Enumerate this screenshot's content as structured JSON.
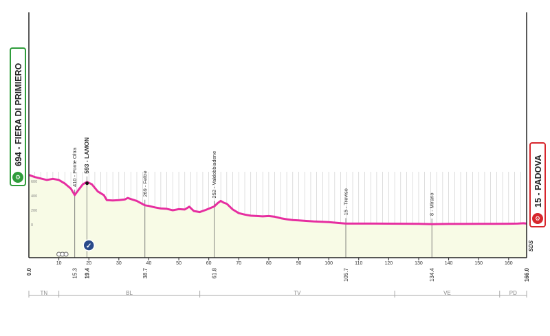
{
  "chart_data": {
    "type": "area",
    "x_range": [
      0,
      166
    ],
    "xticks": [
      10,
      20,
      30,
      40,
      50,
      60,
      70,
      80,
      90,
      100,
      110,
      120,
      130,
      140,
      150,
      160
    ],
    "yticks": [
      0,
      200,
      400,
      600
    ],
    "profile": {
      "x": [
        0,
        2,
        4,
        6,
        8,
        10,
        12,
        14,
        15.3,
        16.5,
        18,
        19.4,
        21,
        23,
        25,
        26,
        28,
        30,
        32,
        33,
        34,
        36,
        38.7,
        40,
        42,
        44,
        46,
        48,
        50,
        52,
        53.5,
        55,
        57,
        59,
        61.8,
        63,
        64,
        65,
        66,
        68,
        70,
        72,
        74,
        76,
        78,
        80,
        82,
        84,
        86,
        88,
        90,
        95,
        100,
        105.7,
        110,
        115,
        120,
        125,
        130,
        134.4,
        140,
        145,
        150,
        155,
        160,
        163,
        165,
        166
      ],
      "y": [
        690,
        660,
        640,
        620,
        635,
        620,
        570,
        500,
        410,
        480,
        560,
        593,
        560,
        460,
        410,
        340,
        335,
        340,
        350,
        370,
        355,
        330,
        269,
        260,
        240,
        225,
        220,
        200,
        215,
        210,
        250,
        190,
        175,
        205,
        252,
        300,
        330,
        305,
        290,
        210,
        160,
        140,
        125,
        120,
        115,
        120,
        110,
        90,
        75,
        65,
        60,
        45,
        35,
        15,
        15,
        15,
        14,
        13,
        12,
        8,
        10,
        10,
        11,
        12,
        13,
        15,
        20,
        15
      ]
    },
    "points": [
      {
        "km": "0.0",
        "elev": "694",
        "name": "FIERA DI PRIMIERO",
        "kind": "start",
        "x": 0,
        "y": 694
      },
      {
        "km": "15.3",
        "elev": "410",
        "name": "Ponte Oltra",
        "kind": "town",
        "x": 15.3,
        "y": 410
      },
      {
        "km": "19.4",
        "elev": "593",
        "name": "LAMON",
        "kind": "sprint",
        "x": 19.4,
        "y": 593
      },
      {
        "km": "38.7",
        "elev": "269",
        "name": "Feltre",
        "kind": "town",
        "x": 38.7,
        "y": 269
      },
      {
        "km": "61.8",
        "elev": "252",
        "name": "Valdobbiadene",
        "kind": "town",
        "x": 61.8,
        "y": 252
      },
      {
        "km": "105.7",
        "elev": "15",
        "name": "Treviso",
        "kind": "town",
        "x": 105.7,
        "y": 15
      },
      {
        "km": "134.4",
        "elev": "8",
        "name": "Mirano",
        "kind": "town",
        "x": 134.4,
        "y": 8
      },
      {
        "km": "166.0",
        "elev": "15",
        "name": "PADOVA",
        "kind": "finish",
        "x": 166,
        "y": 15
      }
    ],
    "start_label": "694 - FIERA DI PRIMIERO",
    "finish_label": "15 - PADOVA",
    "provinces": [
      {
        "code": "TN",
        "from": 0,
        "to": 10
      },
      {
        "code": "BL",
        "from": 10,
        "to": 57
      },
      {
        "code": "TV",
        "from": 57,
        "to": 122
      },
      {
        "code": "VE",
        "from": 122,
        "to": 157
      },
      {
        "code": "PD",
        "from": 157,
        "to": 166
      }
    ],
    "feed_zone_km": 20,
    "feed_marks_km": [
      10,
      11.2,
      12.4
    ],
    "brand": "SDS",
    "colors": {
      "profile": "#e62ea0",
      "fill": "#f8fbe6",
      "start": "#2e9c3a",
      "finish": "#d7262c",
      "sprint": "#2a4a8a",
      "grid": "#c8c8c8"
    }
  }
}
